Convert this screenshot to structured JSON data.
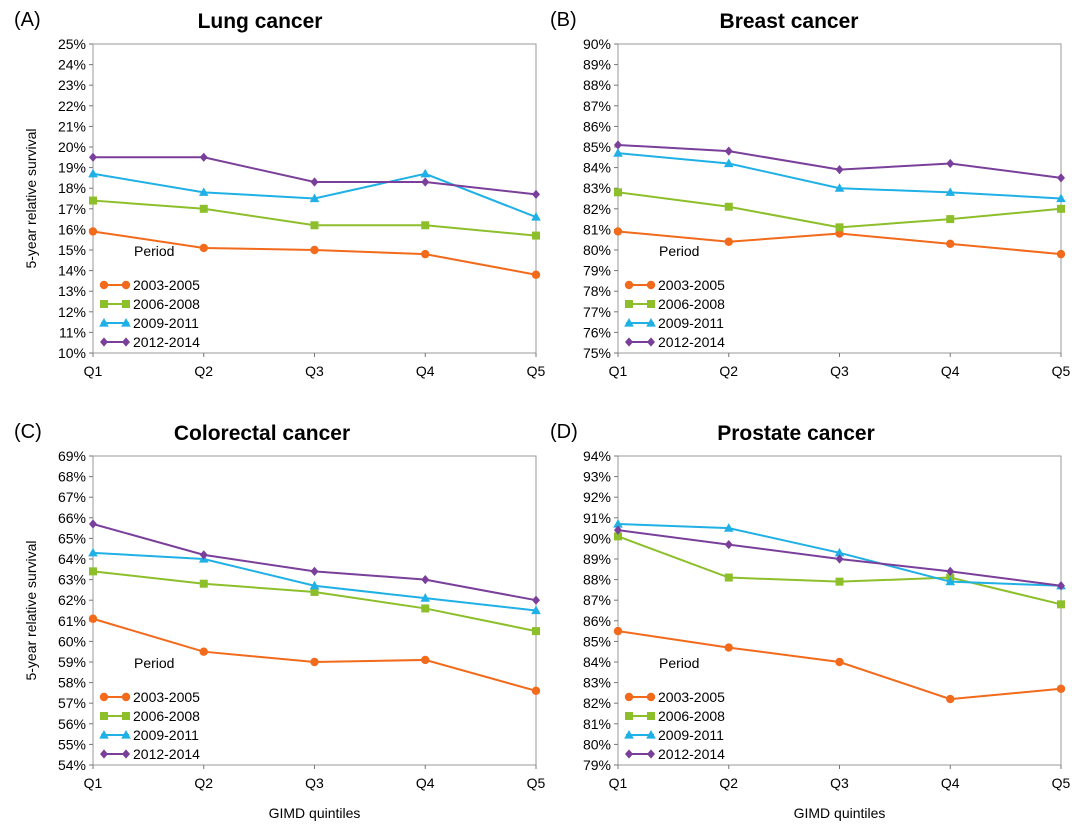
{
  "figure": {
    "quintile_axis_label": "GIMD quintiles",
    "survival_axis_label": "5-year relative survival",
    "legend_title": "Period"
  },
  "colors": {
    "2003-2005": "#f26a1b",
    "2006-2008": "#8cbf2a",
    "2009-2011": "#1fb0e6",
    "2012-2014": "#7a3f9a"
  },
  "chart_data": [
    {
      "panel": "(A)",
      "title": "Lung cancer",
      "type": "line",
      "x": [
        "Q1",
        "Q2",
        "Q3",
        "Q4",
        "Q5"
      ],
      "ylim": [
        10,
        25
      ],
      "yticks": [
        "10%",
        "11%",
        "12%",
        "13%",
        "14%",
        "15%",
        "16%",
        "17%",
        "18%",
        "19%",
        "20%",
        "21%",
        "22%",
        "23%",
        "24%",
        "25%"
      ],
      "ylabel": "5-year relative survival",
      "xlabel": "",
      "legend": "bottom-left",
      "series": [
        {
          "name": "2003-2005",
          "marker": "circle",
          "values": [
            15.9,
            15.1,
            15.0,
            14.8,
            13.8
          ]
        },
        {
          "name": "2006-2008",
          "marker": "square",
          "values": [
            17.4,
            17.0,
            16.2,
            16.2,
            15.7
          ]
        },
        {
          "name": "2009-2011",
          "marker": "triangle",
          "values": [
            18.7,
            17.8,
            17.5,
            18.7,
            16.6
          ]
        },
        {
          "name": "2012-2014",
          "marker": "diamond",
          "values": [
            19.5,
            19.5,
            18.3,
            18.3,
            17.7
          ]
        }
      ]
    },
    {
      "panel": "(B)",
      "title": "Breast cancer",
      "type": "line",
      "x": [
        "Q1",
        "Q2",
        "Q3",
        "Q4",
        "Q5"
      ],
      "ylim": [
        75,
        90
      ],
      "yticks": [
        "75%",
        "76%",
        "77%",
        "78%",
        "79%",
        "80%",
        "81%",
        "82%",
        "83%",
        "84%",
        "85%",
        "86%",
        "87%",
        "88%",
        "89%",
        "90%"
      ],
      "ylabel": "",
      "xlabel": "",
      "legend": "bottom-left",
      "series": [
        {
          "name": "2003-2005",
          "marker": "circle",
          "values": [
            80.9,
            80.4,
            80.8,
            80.3,
            79.8
          ]
        },
        {
          "name": "2006-2008",
          "marker": "square",
          "values": [
            82.8,
            82.1,
            81.1,
            81.5,
            82.0
          ]
        },
        {
          "name": "2009-2011",
          "marker": "triangle",
          "values": [
            84.7,
            84.2,
            83.0,
            82.8,
            82.5
          ]
        },
        {
          "name": "2012-2014",
          "marker": "diamond",
          "values": [
            85.1,
            84.8,
            83.9,
            84.2,
            83.5
          ]
        }
      ]
    },
    {
      "panel": "(C)",
      "title": "Colorectal cancer",
      "type": "line",
      "x": [
        "Q1",
        "Q2",
        "Q3",
        "Q4",
        "Q5"
      ],
      "ylim": [
        54,
        69
      ],
      "yticks": [
        "54%",
        "55%",
        "56%",
        "57%",
        "58%",
        "59%",
        "60%",
        "61%",
        "62%",
        "63%",
        "64%",
        "65%",
        "66%",
        "67%",
        "68%",
        "69%"
      ],
      "ylabel": "5-year relative survival",
      "xlabel": "GIMD quintiles",
      "legend": "bottom-left",
      "series": [
        {
          "name": "2003-2005",
          "marker": "circle",
          "values": [
            61.1,
            59.5,
            59.0,
            59.1,
            57.6
          ]
        },
        {
          "name": "2006-2008",
          "marker": "square",
          "values": [
            63.4,
            62.8,
            62.4,
            61.6,
            60.5
          ]
        },
        {
          "name": "2009-2011",
          "marker": "triangle",
          "values": [
            64.3,
            64.0,
            62.7,
            62.1,
            61.5
          ]
        },
        {
          "name": "2012-2014",
          "marker": "diamond",
          "values": [
            65.7,
            64.2,
            63.4,
            63.0,
            62.0
          ]
        }
      ]
    },
    {
      "panel": "(D)",
      "title": "Prostate cancer",
      "type": "line",
      "x": [
        "Q1",
        "Q2",
        "Q3",
        "Q4",
        "Q5"
      ],
      "ylim": [
        79,
        94
      ],
      "yticks": [
        "79%",
        "80%",
        "81%",
        "82%",
        "83%",
        "84%",
        "85%",
        "86%",
        "87%",
        "88%",
        "89%",
        "90%",
        "91%",
        "92%",
        "93%",
        "94%"
      ],
      "ylabel": "",
      "xlabel": "GIMD quintiles",
      "legend": "bottom-left",
      "series": [
        {
          "name": "2003-2005",
          "marker": "circle",
          "values": [
            85.5,
            84.7,
            84.0,
            82.2,
            82.7
          ]
        },
        {
          "name": "2006-2008",
          "marker": "square",
          "values": [
            90.1,
            88.1,
            87.9,
            88.1,
            86.8
          ]
        },
        {
          "name": "2009-2011",
          "marker": "triangle",
          "values": [
            90.7,
            90.5,
            89.3,
            87.9,
            87.7
          ]
        },
        {
          "name": "2012-2014",
          "marker": "diamond",
          "values": [
            90.4,
            89.7,
            89.0,
            88.4,
            87.7
          ]
        }
      ]
    }
  ]
}
